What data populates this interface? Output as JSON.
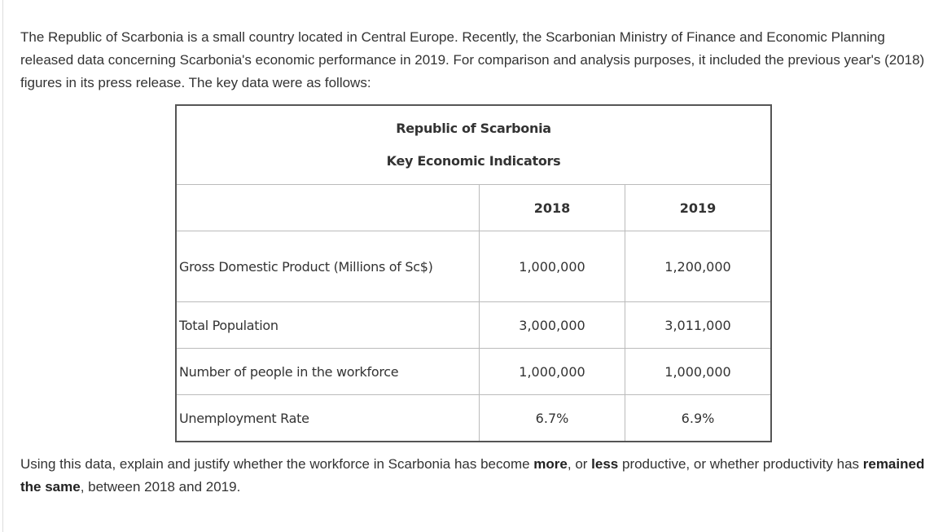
{
  "intro": "The Republic of Scarbonia is a small country located in Central Europe. Recently, the Scarbonian Ministry of Finance and Economic Planning released data concerning Scarbonia's economic performance in 2019. For comparison and analysis purposes, it included the previous year's (2018) figures in its press release. The key data were as follows:",
  "table": {
    "title": [
      "Republic of Scarbonia",
      "Key Economic Indicators"
    ],
    "header": [
      "2018",
      "2019"
    ],
    "rows": [
      [
        "Gross Domestic Product (Millions of Sc$)",
        "1,000,000",
        "1,200,000"
      ],
      [
        "Total Population",
        "3,000,000",
        "3,011,000"
      ],
      [
        "Number of people in the workforce",
        "1,000,000",
        "1,000,000"
      ],
      [
        "Unemployment Rate",
        "6.7%",
        "6.9%"
      ]
    ]
  },
  "question": [
    {
      "text": "Using this data, explain and justify whether the workforce in Scarbonia has become ",
      "bold": false
    },
    {
      "text": "more",
      "bold": true
    },
    {
      "text": ", or ",
      "bold": false
    },
    {
      "text": "less",
      "bold": true
    },
    {
      "text": " productive, or whether productivity has ",
      "bold": false
    },
    {
      "text": "remained the same",
      "bold": true
    },
    {
      "text": ", between 2018 and 2019.",
      "bold": false
    }
  ]
}
